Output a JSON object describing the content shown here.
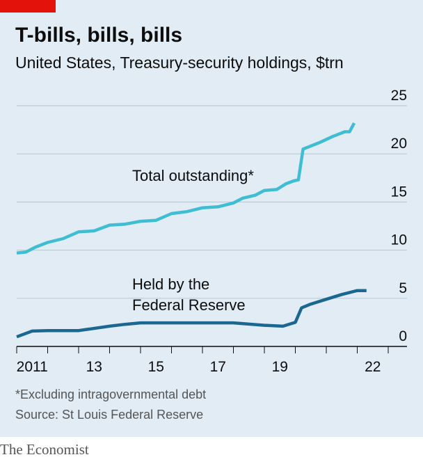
{
  "chart_data": {
    "type": "line",
    "title": "T-bills, bills, bills",
    "subtitle": "United States, Treasury-security holdings, $trn",
    "footnote": "*Excluding intragovernmental debt",
    "source": "Source: St Louis Federal Reserve",
    "brand": "The Economist",
    "annotations": [
      "Total outstanding*",
      "Held by the",
      "Federal Reserve"
    ],
    "xlim": [
      2011,
      2023.6
    ],
    "xticks": [
      {
        "value": 2011,
        "label": "2011"
      },
      {
        "value": 2012,
        "label": null
      },
      {
        "value": 2013,
        "label": "13"
      },
      {
        "value": 2014,
        "label": null
      },
      {
        "value": 2015,
        "label": "15"
      },
      {
        "value": 2016,
        "label": null
      },
      {
        "value": 2017,
        "label": "17"
      },
      {
        "value": 2018,
        "label": null
      },
      {
        "value": 2019,
        "label": "19"
      },
      {
        "value": 2020,
        "label": null
      },
      {
        "value": 2021,
        "label": null
      },
      {
        "value": 2022,
        "label": "22"
      },
      {
        "value": 2023,
        "label": null
      }
    ],
    "ylim": [
      0,
      25
    ],
    "yticks": [
      0,
      5,
      10,
      15,
      20,
      25
    ],
    "grid": true,
    "series": [
      {
        "name": "Total outstanding*",
        "color": "#3fbdd3",
        "x": [
          2011.0,
          2011.3,
          2011.6,
          2012.0,
          2012.5,
          2013.0,
          2013.5,
          2014.0,
          2014.5,
          2015.0,
          2015.5,
          2016.0,
          2016.5,
          2017.0,
          2017.5,
          2018.0,
          2018.3,
          2018.7,
          2019.0,
          2019.4,
          2019.7,
          2019.95,
          2020.1,
          2020.25,
          2020.8,
          2021.2,
          2021.6,
          2021.75,
          2021.9
        ],
        "values": [
          9.7,
          9.8,
          10.3,
          10.8,
          11.2,
          11.9,
          12.0,
          12.6,
          12.7,
          13.0,
          13.1,
          13.8,
          14.0,
          14.4,
          14.5,
          14.9,
          15.4,
          15.7,
          16.2,
          16.3,
          16.9,
          17.2,
          17.3,
          20.5,
          21.2,
          21.8,
          22.3,
          22.3,
          23.2
        ]
      },
      {
        "name": "Held by the Federal Reserve",
        "color": "#1a6791",
        "x": [
          2011.0,
          2011.5,
          2012.0,
          2013.0,
          2014.0,
          2014.5,
          2015.0,
          2018.0,
          2019.0,
          2019.6,
          2020.0,
          2020.2,
          2020.5,
          2021.0,
          2021.5,
          2022.0,
          2022.3
        ],
        "values": [
          1.0,
          1.6,
          1.65,
          1.65,
          2.1,
          2.3,
          2.45,
          2.45,
          2.2,
          2.1,
          2.5,
          4.0,
          4.4,
          4.9,
          5.4,
          5.8,
          5.8
        ]
      }
    ]
  }
}
